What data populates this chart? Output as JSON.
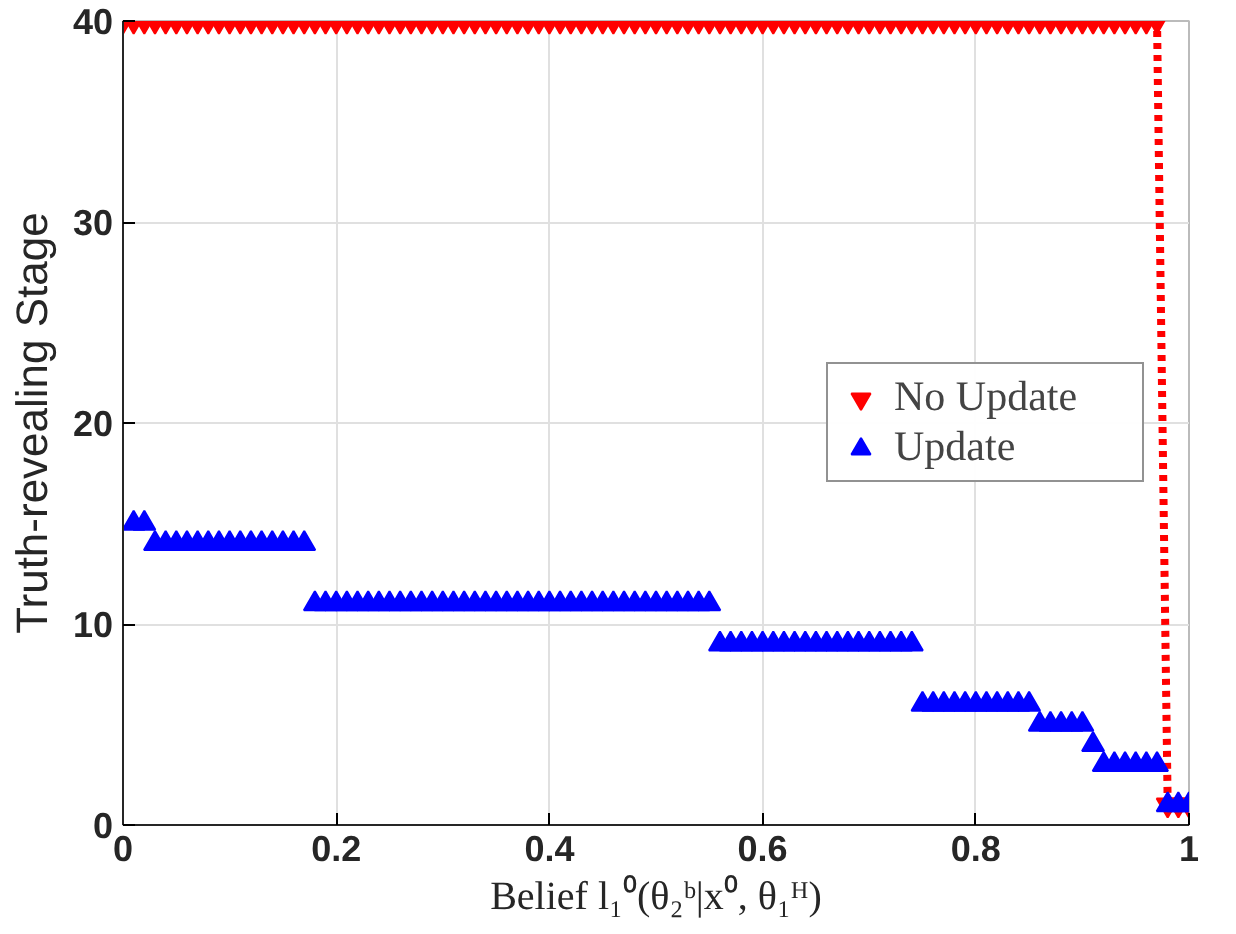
{
  "chart_data": {
    "type": "scatter",
    "xlabel": "Belief l₁⁰(θ₂ᵇ|x⁰, θ₁ᴴ)",
    "ylabel": "Truth-revealing Stage",
    "xlim": [
      0,
      1
    ],
    "ylim": [
      0,
      40
    ],
    "xticks": [
      0,
      0.2,
      0.4,
      0.6,
      0.8,
      1
    ],
    "yticks": [
      0,
      10,
      20,
      30,
      40
    ],
    "grid": true,
    "legend": "right",
    "series": [
      {
        "name": "No Update",
        "type": "line",
        "color": "#ff0000",
        "marker": "triangle_down",
        "line_style": "dotted",
        "x": [
          0,
          0.01,
          0.02,
          0.03,
          0.04,
          0.05,
          0.06,
          0.07,
          0.08,
          0.09,
          0.1,
          0.11,
          0.12,
          0.13,
          0.14,
          0.15,
          0.16,
          0.17,
          0.18,
          0.19,
          0.2,
          0.21,
          0.22,
          0.23,
          0.24,
          0.25,
          0.26,
          0.27,
          0.28,
          0.29,
          0.3,
          0.31,
          0.32,
          0.33,
          0.34,
          0.35,
          0.36,
          0.37,
          0.38,
          0.39,
          0.4,
          0.41,
          0.42,
          0.43,
          0.44,
          0.45,
          0.46,
          0.47,
          0.48,
          0.49,
          0.5,
          0.51,
          0.52,
          0.53,
          0.54,
          0.55,
          0.56,
          0.57,
          0.58,
          0.59,
          0.6,
          0.61,
          0.62,
          0.63,
          0.64,
          0.65,
          0.66,
          0.67,
          0.68,
          0.69,
          0.7,
          0.71,
          0.72,
          0.73,
          0.74,
          0.75,
          0.76,
          0.77,
          0.78,
          0.79,
          0.8,
          0.81,
          0.82,
          0.83,
          0.84,
          0.85,
          0.86,
          0.87,
          0.88,
          0.89,
          0.9,
          0.91,
          0.92,
          0.93,
          0.94,
          0.95,
          0.96,
          0.97,
          0.98,
          0.99,
          1
        ],
        "values": [
          40,
          40,
          40,
          40,
          40,
          40,
          40,
          40,
          40,
          40,
          40,
          40,
          40,
          40,
          40,
          40,
          40,
          40,
          40,
          40,
          40,
          40,
          40,
          40,
          40,
          40,
          40,
          40,
          40,
          40,
          40,
          40,
          40,
          40,
          40,
          40,
          40,
          40,
          40,
          40,
          40,
          40,
          40,
          40,
          40,
          40,
          40,
          40,
          40,
          40,
          40,
          40,
          40,
          40,
          40,
          40,
          40,
          40,
          40,
          40,
          40,
          40,
          40,
          40,
          40,
          40,
          40,
          40,
          40,
          40,
          40,
          40,
          40,
          40,
          40,
          40,
          40,
          40,
          40,
          40,
          40,
          40,
          40,
          40,
          40,
          40,
          40,
          40,
          40,
          40,
          40,
          40,
          40,
          40,
          40,
          40,
          40,
          40,
          1,
          1,
          1
        ]
      },
      {
        "name": "Update",
        "color": "#0000ff",
        "marker": "triangle",
        "x": [
          0.01,
          0.02,
          0.03,
          0.04,
          0.05,
          0.06,
          0.07,
          0.08,
          0.09,
          0.1,
          0.11,
          0.12,
          0.13,
          0.14,
          0.15,
          0.16,
          0.17,
          0.18,
          0.19,
          0.2,
          0.21,
          0.22,
          0.23,
          0.24,
          0.25,
          0.26,
          0.27,
          0.28,
          0.29,
          0.3,
          0.31,
          0.32,
          0.33,
          0.34,
          0.35,
          0.36,
          0.37,
          0.38,
          0.39,
          0.4,
          0.41,
          0.42,
          0.43,
          0.44,
          0.45,
          0.46,
          0.47,
          0.48,
          0.49,
          0.5,
          0.51,
          0.52,
          0.53,
          0.54,
          0.55,
          0.56,
          0.57,
          0.58,
          0.59,
          0.6,
          0.61,
          0.62,
          0.63,
          0.64,
          0.65,
          0.66,
          0.67,
          0.68,
          0.69,
          0.7,
          0.71,
          0.72,
          0.73,
          0.74,
          0.75,
          0.76,
          0.77,
          0.78,
          0.79,
          0.8,
          0.81,
          0.82,
          0.83,
          0.84,
          0.85,
          0.86,
          0.87,
          0.88,
          0.89,
          0.9,
          0.91,
          0.92,
          0.93,
          0.94,
          0.95,
          0.96,
          0.97,
          0.98,
          0.99,
          1
        ],
        "values": [
          15,
          15,
          14,
          14,
          14,
          14,
          14,
          14,
          14,
          14,
          14,
          14,
          14,
          14,
          14,
          14,
          14,
          11,
          11,
          11,
          11,
          11,
          11,
          11,
          11,
          11,
          11,
          11,
          11,
          11,
          11,
          11,
          11,
          11,
          11,
          11,
          11,
          11,
          11,
          11,
          11,
          11,
          11,
          11,
          11,
          11,
          11,
          11,
          11,
          11,
          11,
          11,
          11,
          11,
          11,
          9,
          9,
          9,
          9,
          9,
          9,
          9,
          9,
          9,
          9,
          9,
          9,
          9,
          9,
          9,
          9,
          9,
          9,
          9,
          6,
          6,
          6,
          6,
          6,
          6,
          6,
          6,
          6,
          6,
          6,
          5,
          5,
          5,
          5,
          5,
          4,
          3,
          3,
          3,
          3,
          3,
          3,
          1,
          1,
          1
        ]
      }
    ]
  }
}
